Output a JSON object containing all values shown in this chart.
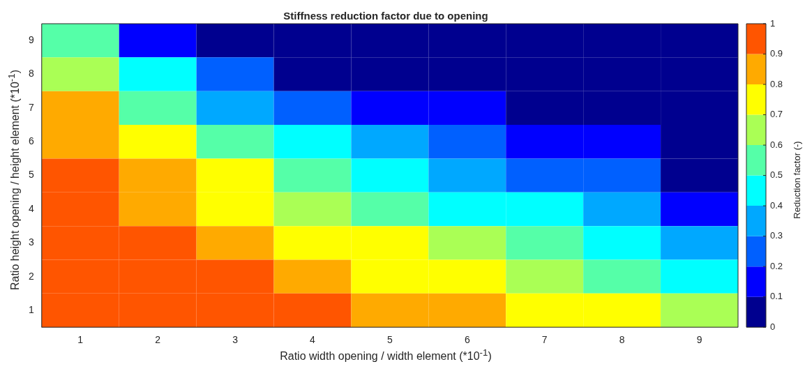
{
  "chart_data": {
    "type": "heatmap",
    "title": "Stiffness reduction factor due to opening",
    "xlabel": "Ratio width opening / width element (*10$^{-1}$)",
    "ylabel": "Ratio height opening / height element (*10$^{-1}$)",
    "clabel": "Reduction factor (-)",
    "categories": [
      "1",
      "2",
      "3",
      "4",
      "5",
      "6",
      "7",
      "8",
      "9"
    ],
    "y_categories": [
      "9",
      "8",
      "7",
      "6",
      "5",
      "4",
      "3",
      "2",
      "1"
    ],
    "cells": [
      [
        0.5,
        0.1,
        0.05,
        0,
        0,
        0,
        0,
        0,
        0
      ],
      [
        0.67,
        0.42,
        0.22,
        0.08,
        0.03,
        0,
        0,
        0,
        0
      ],
      [
        0.8,
        0.58,
        0.35,
        0.27,
        0.16,
        0.1,
        0.05,
        0.05,
        0
      ],
      [
        0.86,
        0.72,
        0.57,
        0.43,
        0.31,
        0.23,
        0.16,
        0.1,
        0
      ],
      [
        0.92,
        0.81,
        0.7,
        0.56,
        0.46,
        0.36,
        0.27,
        0.2,
        0.07
      ],
      [
        0.94,
        0.87,
        0.78,
        0.68,
        0.59,
        0.49,
        0.41,
        0.33,
        0.16
      ],
      [
        0.96,
        0.92,
        0.85,
        0.77,
        0.7,
        0.61,
        0.54,
        0.45,
        0.31
      ],
      [
        0.98,
        0.94,
        0.91,
        0.85,
        0.78,
        0.72,
        0.65,
        0.58,
        0.47
      ],
      [
        1,
        0.97,
        0.96,
        0.91,
        0.86,
        0.81,
        0.76,
        0.7,
        0.61
      ]
    ],
    "colors": [
      "#00008f",
      "#0000ff",
      "#0060ff",
      "#00a8ff",
      "#00ffff",
      "#55ffa8",
      "#aaff55",
      "#ffff00",
      "#ffaa00",
      "#ff5500"
    ],
    "clim": [
      0,
      1
    ],
    "cticks": [
      0,
      0.1,
      0.2,
      0.3,
      0.4,
      0.5,
      0.6,
      0.7,
      0.8,
      0.9,
      1
    ]
  }
}
